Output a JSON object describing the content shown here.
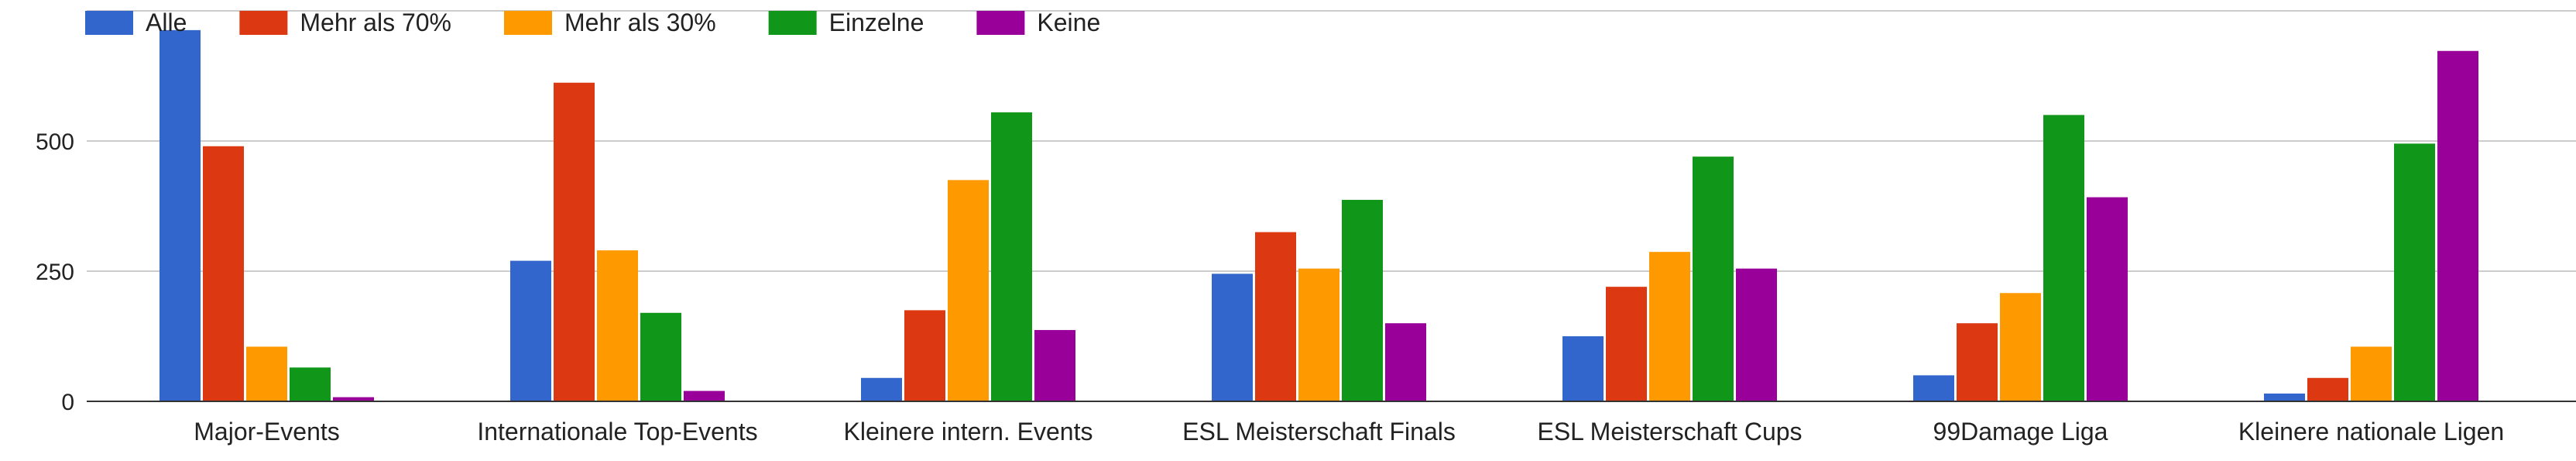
{
  "chart_data": {
    "type": "bar",
    "title": "",
    "xlabel": "",
    "ylabel": "",
    "categories": [
      "Major-Events",
      "Internationale Top-Events",
      "Kleinere intern. Events",
      "ESL Meisterschaft Finals",
      "ESL Meisterschaft Cups",
      "99Damage Liga",
      "Kleinere nationale Ligen"
    ],
    "series": [
      {
        "name": "Alle",
        "color": "#3366cc",
        "values": [
          713,
          270,
          45,
          245,
          125,
          50,
          15
        ]
      },
      {
        "name": "Mehr als 70%",
        "color": "#dc3912",
        "values": [
          490,
          612,
          175,
          325,
          220,
          150,
          45
        ]
      },
      {
        "name": "Mehr als 30%",
        "color": "#ff9900",
        "values": [
          105,
          290,
          425,
          255,
          287,
          208,
          105
        ]
      },
      {
        "name": "Einzelne",
        "color": "#109618",
        "values": [
          65,
          170,
          555,
          387,
          470,
          550,
          495
        ]
      },
      {
        "name": "Keine",
        "color": "#990099",
        "values": [
          8,
          20,
          137,
          150,
          255,
          392,
          673
        ]
      }
    ],
    "y_ticks": [
      0,
      250,
      500
    ],
    "ylim": [
      0,
      750
    ],
    "grid": true,
    "legend_position": "top-left"
  }
}
